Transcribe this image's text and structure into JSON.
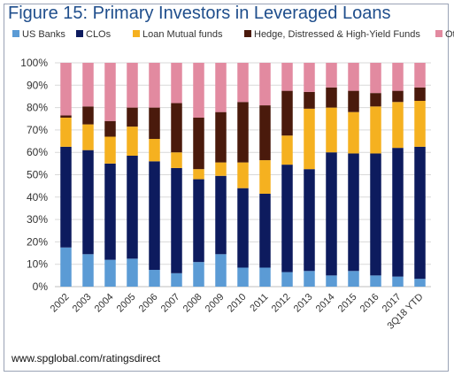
{
  "header": {
    "title": "Figure 15: Primary Investors in Leveraged Loans"
  },
  "footer": {
    "source": "www.spglobal.com/ratingsdirect"
  },
  "chart_data": {
    "type": "bar",
    "stacked": true,
    "title": "Figure 15: Primary Investors in Leveraged Loans",
    "xlabel": "",
    "ylabel": "",
    "ylim": [
      0,
      100
    ],
    "y_ticks": [
      "0%",
      "10%",
      "20%",
      "30%",
      "40%",
      "50%",
      "60%",
      "70%",
      "80%",
      "90%",
      "100%"
    ],
    "grid": true,
    "legend_position": "top",
    "categories": [
      "2002",
      "2003",
      "2004",
      "2005",
      "2006",
      "2007",
      "2008",
      "2009",
      "2010",
      "2011",
      "2012",
      "2013",
      "2014",
      "2015",
      "2016",
      "2017",
      "3Q18 YTD"
    ],
    "series": [
      {
        "name": "US Banks",
        "color": "#5b9bd5",
        "values": [
          17.5,
          14.5,
          12,
          12.5,
          7.5,
          6,
          11,
          14.5,
          8.5,
          8.5,
          6.5,
          7,
          5,
          7,
          5,
          4.5,
          3.5
        ]
      },
      {
        "name": "CLOs",
        "color": "#0d1b5e",
        "values": [
          45,
          46.5,
          43,
          46,
          48.5,
          47,
          37,
          35,
          35.5,
          33,
          48,
          45.5,
          55,
          52.5,
          54.5,
          57.5,
          59
        ]
      },
      {
        "name": "Loan Mutual funds",
        "color": "#f5b120",
        "values": [
          13,
          11.5,
          12,
          13,
          10,
          7,
          4.5,
          6,
          11.5,
          15,
          13,
          27,
          20,
          18.5,
          21,
          20.5,
          20.5
        ]
      },
      {
        "name": "Hedge, Distressed & High-Yield Funds",
        "color": "#4a1a0c",
        "values": [
          1,
          8,
          7,
          8.5,
          14,
          22,
          23,
          22.5,
          27,
          24.5,
          20,
          7.5,
          9,
          9.5,
          6,
          5,
          6
        ]
      },
      {
        "name": "Other",
        "color": "#e28aa0",
        "values": [
          23.5,
          19.5,
          26,
          20,
          20,
          18,
          24.5,
          22,
          17.5,
          19,
          12.5,
          13,
          11,
          12.5,
          13.5,
          12.5,
          11
        ]
      }
    ]
  }
}
